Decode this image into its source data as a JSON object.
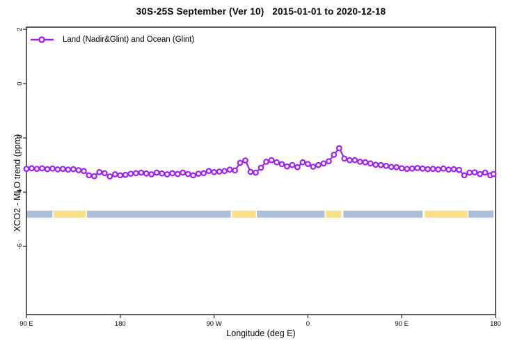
{
  "title": "30S-25S September (Ver 10)   2015-01-01 to 2020-12-18",
  "legend": {
    "label": "Land (Nadir&Glint) and Ocean (Glint)"
  },
  "colors": {
    "curve": "#A020F0",
    "ocean": "#A9C0DC",
    "land": "#FBDD8A",
    "frame": "#1A1A1A",
    "text": "#000000"
  },
  "chart_data": {
    "type": "line",
    "title": "30S-25S September (Ver 10)   2015-01-01 to 2020-12-18",
    "xlabel": "Longitude (deg E)",
    "ylabel": "XCO2 - MLO trend (ppm)",
    "x_axis_note": "wrapped longitude axis: 90E -> 180 -> 90W -> 0 -> 90E -> 180",
    "xlim": [
      90,
      540
    ],
    "ylim": [
      -8.51,
      2.08
    ],
    "grid": false,
    "legend_position": "top-left",
    "line_color": "#A020F0",
    "marker": "open-circle",
    "x_ticks": [
      {
        "v": 90,
        "label": "90 E"
      },
      {
        "v": 180,
        "label": "180"
      },
      {
        "v": 270,
        "label": "90 W"
      },
      {
        "v": 360,
        "label": "0"
      },
      {
        "v": 450,
        "label": "90 E"
      },
      {
        "v": 540,
        "label": "180"
      }
    ],
    "y_ticks": [
      {
        "v": 2,
        "label": "2"
      },
      {
        "v": 0,
        "label": "0"
      },
      {
        "v": -2,
        "label": "-2"
      },
      {
        "v": -4,
        "label": "-4"
      },
      {
        "v": -6,
        "label": "-6"
      }
    ],
    "series": [
      {
        "name": "Land (Nadir&Glint) and Ocean (Glint)",
        "x": [
          90,
          95,
          100,
          105,
          110,
          115,
          120,
          125,
          130,
          135,
          140,
          145,
          150,
          155,
          160,
          165,
          170,
          175,
          180,
          185,
          190,
          195,
          200,
          205,
          210,
          215,
          220,
          225,
          230,
          235,
          240,
          245,
          250,
          255,
          260,
          265,
          270,
          275,
          280,
          285,
          290,
          295,
          300,
          305,
          310,
          315,
          320,
          325,
          330,
          335,
          340,
          345,
          350,
          355,
          360,
          365,
          370,
          375,
          380,
          385,
          390,
          395,
          400,
          405,
          410,
          415,
          420,
          425,
          430,
          435,
          440,
          445,
          450,
          455,
          460,
          465,
          470,
          475,
          480,
          485,
          490,
          495,
          500,
          505,
          510,
          515,
          520,
          525,
          530,
          535,
          538
        ],
        "y": [
          -3.14,
          -3.12,
          -3.14,
          -3.12,
          -3.15,
          -3.13,
          -3.16,
          -3.14,
          -3.17,
          -3.15,
          -3.19,
          -3.22,
          -3.38,
          -3.41,
          -3.26,
          -3.3,
          -3.42,
          -3.34,
          -3.38,
          -3.36,
          -3.32,
          -3.3,
          -3.28,
          -3.31,
          -3.34,
          -3.28,
          -3.31,
          -3.34,
          -3.3,
          -3.33,
          -3.28,
          -3.33,
          -3.38,
          -3.32,
          -3.3,
          -3.22,
          -3.26,
          -3.24,
          -3.22,
          -3.17,
          -3.2,
          -2.92,
          -2.83,
          -3.25,
          -3.28,
          -3.1,
          -2.88,
          -2.82,
          -2.9,
          -2.97,
          -3.05,
          -3.0,
          -3.08,
          -2.9,
          -2.96,
          -3.06,
          -3.0,
          -2.94,
          -2.86,
          -2.62,
          -2.38,
          -2.76,
          -2.82,
          -2.82,
          -2.88,
          -2.9,
          -2.94,
          -2.99,
          -3.0,
          -3.03,
          -3.07,
          -3.08,
          -3.12,
          -3.14,
          -3.13,
          -3.11,
          -3.13,
          -3.15,
          -3.14,
          -3.16,
          -3.13,
          -3.17,
          -3.15,
          -3.18,
          -3.38,
          -3.28,
          -3.27,
          -3.33,
          -3.28,
          -3.38,
          -3.33
        ]
      }
    ],
    "surface_band": {
      "y_top": -4.68,
      "y_bottom": -4.94,
      "segments": [
        {
          "from": 90,
          "to": 115,
          "type": "ocean"
        },
        {
          "from": 116,
          "to": 147,
          "type": "land"
        },
        {
          "from": 148,
          "to": 286,
          "type": "ocean"
        },
        {
          "from": 287,
          "to": 310,
          "type": "land"
        },
        {
          "from": 311,
          "to": 376,
          "type": "ocean"
        },
        {
          "from": 377,
          "to": 392,
          "type": "land"
        },
        {
          "from": 394,
          "to": 470,
          "type": "ocean"
        },
        {
          "from": 472,
          "to": 513,
          "type": "land"
        },
        {
          "from": 514,
          "to": 538,
          "type": "ocean"
        }
      ]
    }
  }
}
